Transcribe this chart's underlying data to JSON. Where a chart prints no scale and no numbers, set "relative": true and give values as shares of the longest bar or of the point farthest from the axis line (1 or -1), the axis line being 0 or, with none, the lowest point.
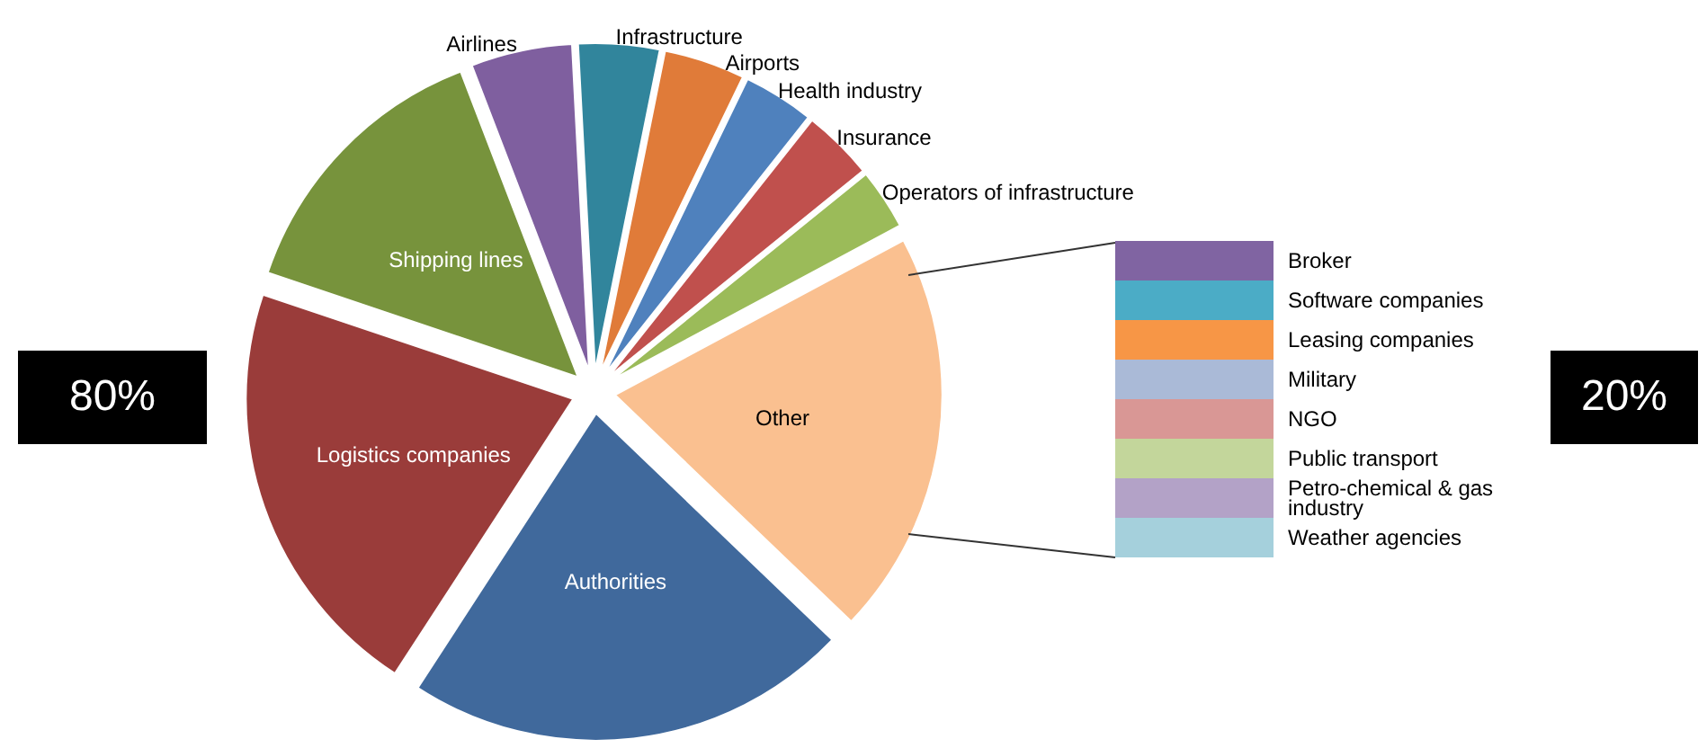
{
  "chart_data": [
    {
      "type": "pie",
      "categories": [
        "Infrastructure",
        "Airports",
        "Health industry",
        "Insurance",
        "Operators of infrastructure",
        "Other",
        "Authorities",
        "Logistics companies",
        "Shipping lines",
        "Airlines"
      ],
      "values": [
        4,
        4,
        3.5,
        3.5,
        3,
        20,
        22,
        21,
        14,
        5
      ],
      "colors": [
        "#31859c",
        "#e07b39",
        "#4f81bd",
        "#c0504d",
        "#9bbb59",
        "#fac090",
        "#40699c",
        "#9a3c3a",
        "#77933c",
        "#7f5f9f"
      ],
      "legend": false,
      "annotations": [
        "80%"
      ]
    },
    {
      "type": "bar",
      "stacked": true,
      "relative": true,
      "categories": [
        null
      ],
      "legend": false,
      "annotations": [
        "20%"
      ],
      "series": [
        {
          "name": "Weather agencies",
          "color": "#a5d0dc",
          "values": [
            0.125
          ]
        },
        {
          "name": "Petro-chemical & gas industry",
          "color": "#b3a2c7",
          "values": [
            0.125
          ]
        },
        {
          "name": "Public transport",
          "color": "#c3d69b",
          "values": [
            0.125
          ]
        },
        {
          "name": "NGO",
          "color": "#d99795",
          "values": [
            0.125
          ]
        },
        {
          "name": "Military",
          "color": "#aabad7",
          "values": [
            0.125
          ]
        },
        {
          "name": "Leasing companies",
          "color": "#f79646",
          "values": [
            0.125
          ]
        },
        {
          "name": "Software companies",
          "color": "#4bacc6",
          "values": [
            0.125
          ]
        },
        {
          "name": "Broker",
          "color": "#8064a2",
          "values": [
            0.125
          ]
        }
      ]
    }
  ]
}
